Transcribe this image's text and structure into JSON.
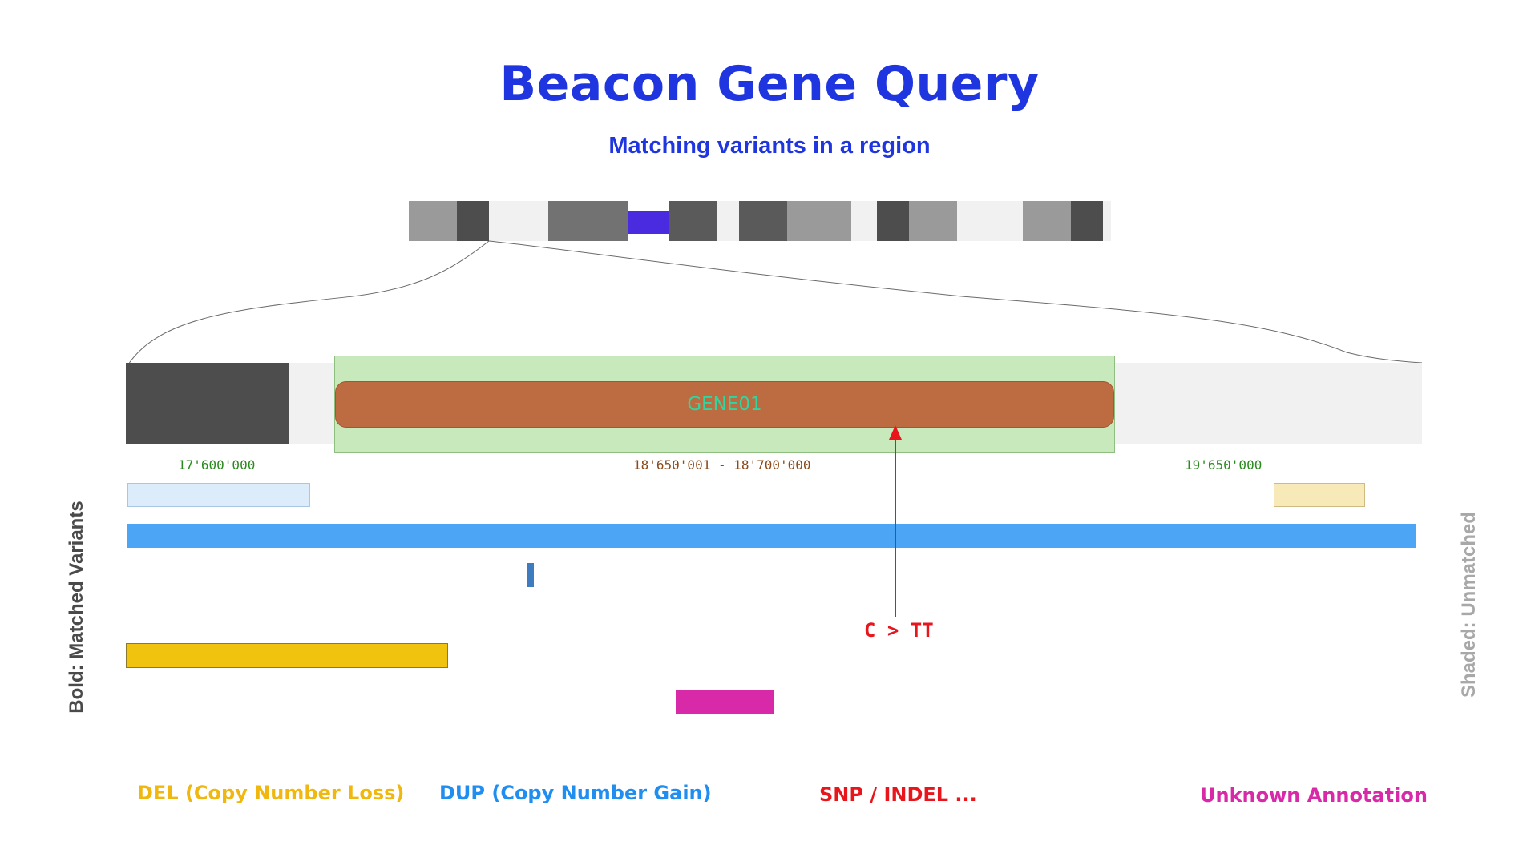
{
  "title": "Beacon Gene Query",
  "subtitle": "Matching variants in a region",
  "side_labels": {
    "left": "Bold: Matched Variants",
    "right": "Shaded: Unmatched"
  },
  "chromosome": {
    "highlight_color": "#4b2be0"
  },
  "region": {
    "gene_name": "GENE01",
    "coords": {
      "left": "17'600'000",
      "center": "18'650'001 - 18'700'000",
      "right": "19'650'000"
    }
  },
  "snp": {
    "label": "C > TT",
    "color": "#e8161c"
  },
  "variant_colors": {
    "del_shaded": "#dcecfb",
    "unknown_shaded": "#f8eab8",
    "dup": "#4da6f5",
    "dup_small": "#3f7bbf",
    "del": "#f0c30f",
    "unknown": "#d82aa8"
  },
  "legend": {
    "del": "DEL (Copy Number Loss)",
    "dup": "DUP (Copy Number Gain)",
    "snp": "SNP / INDEL ...",
    "unknown": "Unknown Annotation"
  },
  "legend_colors": {
    "del": "#f0b70f",
    "dup": "#1f8ef0",
    "snp": "#e8161c",
    "unknown": "#d82aa8"
  }
}
